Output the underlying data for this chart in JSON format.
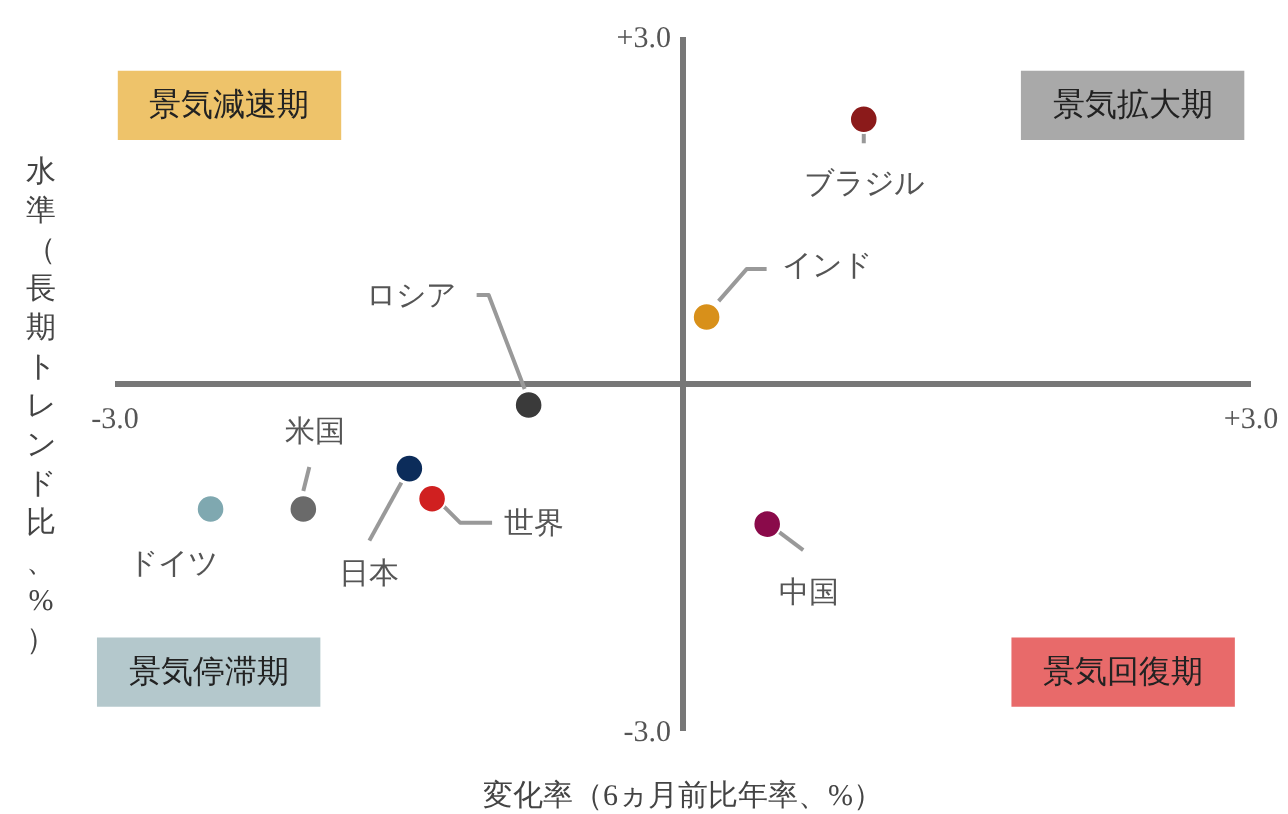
{
  "chart_data": {
    "type": "scatter",
    "xlabel": "変化率（6ヵ月前比年率、%）",
    "ylabel": "水準（長期トレンド比、%）",
    "xlim": [
      -3,
      3
    ],
    "ylim": [
      -3,
      3
    ],
    "xticks": [
      {
        "value": -3,
        "label": "-3.0"
      },
      {
        "value": 3,
        "label": "+3.0"
      }
    ],
    "yticks": [
      {
        "value": -3,
        "label": "-3.0"
      },
      {
        "value": 3,
        "label": "+3.0"
      }
    ],
    "grid": false,
    "marker": "circle",
    "annotations": [
      "景気減速期",
      "景気拡大期",
      "景気停滞期",
      "景気回復期"
    ],
    "series": [
      {
        "name": "ブラジル",
        "color": "#8b1a1a",
        "x": [
          0.96
        ],
        "values": [
          2.28
        ]
      },
      {
        "name": "インド",
        "color": "#d8901a",
        "x": [
          0.13
        ],
        "values": [
          0.57
        ]
      },
      {
        "name": "ロシア",
        "color": "#3a3a3a",
        "x": [
          -0.81
        ],
        "values": [
          -0.19
        ]
      },
      {
        "name": "中国",
        "color": "#8a0a4a",
        "x": [
          0.45
        ],
        "values": [
          -1.22
        ]
      },
      {
        "name": "日本",
        "color": "#0c2c5a",
        "x": [
          -1.44
        ],
        "values": [
          -0.74
        ]
      },
      {
        "name": "世界",
        "color": "#d02020",
        "x": [
          -1.32
        ],
        "values": [
          -1.0
        ]
      },
      {
        "name": "米国",
        "color": "#6a6a6a",
        "x": [
          -2.0
        ],
        "values": [
          -1.09
        ]
      },
      {
        "name": "ドイツ",
        "color": "#7fa8b0",
        "x": [
          -2.49
        ],
        "values": [
          -1.09
        ]
      }
    ]
  }
}
